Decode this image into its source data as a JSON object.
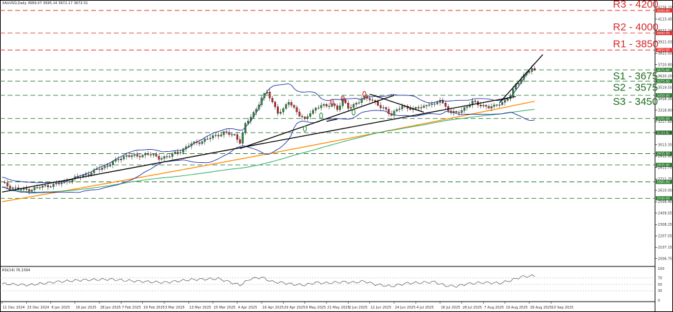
{
  "header": {
    "symbol_line": "XAUUSD,Daily  3689.07 3695.14 3672.17 3672.51",
    "rsi_line": "RSI(14) 76.1594"
  },
  "colors": {
    "resistance": "#e3342f",
    "support": "#2e7d32",
    "candle_up": "#2e8b3d",
    "candle_down": "#c62828",
    "bollinger": "#1f2fa8",
    "ma_mid": "#3cb371",
    "ma_long": "#ff8c00",
    "trendline": "#000000",
    "rsi": "#555555"
  },
  "chart_data": {
    "type": "candlestick",
    "ylim": [
      1950,
      4280
    ],
    "xlim": [
      0,
      197
    ],
    "y_ticks": [
      4226.1,
      4123.45,
      4022.24,
      3921.03,
      3821.0,
      3720.8,
      3620.2,
      3519.55,
      3418.35,
      3318.8,
      3217.6,
      3115.9,
      3013.35,
      2912.95,
      2811.7,
      2711.25,
      2610.0,
      2509.4,
      2409.05,
      2308.25,
      2207.05,
      2107.15,
      2006.75
    ],
    "x_labels": [
      {
        "i": 0,
        "label": "11 Dec 2024"
      },
      {
        "i": 9,
        "label": "23 Dec 2024"
      },
      {
        "i": 18,
        "label": "6 Jan 2025"
      },
      {
        "i": 27,
        "label": "16 Jan 2025"
      },
      {
        "i": 36,
        "label": "28 Jan 2025"
      },
      {
        "i": 44,
        "label": "7 Feb 2025"
      },
      {
        "i": 52,
        "label": "19 Feb 2025"
      },
      {
        "i": 60,
        "label": "3 Mar 2025"
      },
      {
        "i": 69,
        "label": "13 Mar 2025"
      },
      {
        "i": 78,
        "label": "25 Mar 2025"
      },
      {
        "i": 87,
        "label": "4 Apr 2025"
      },
      {
        "i": 96,
        "label": "16 Apr 2025"
      },
      {
        "i": 104,
        "label": "29 Apr 2025"
      },
      {
        "i": 112,
        "label": "9 May 2025"
      },
      {
        "i": 120,
        "label": "21 May 2025"
      },
      {
        "i": 128,
        "label": "2 Jun 2025"
      },
      {
        "i": 136,
        "label": "12 Jun 2025"
      },
      {
        "i": 145,
        "label": "24 Jun 2025"
      },
      {
        "i": 153,
        "label": "4 Jul 2025"
      },
      {
        "i": 162,
        "label": "16 Jul 2025"
      },
      {
        "i": 170,
        "label": "28 Jul 2025"
      },
      {
        "i": 178,
        "label": "7 Aug 2025"
      },
      {
        "i": 186,
        "label": "19 Aug 2025"
      },
      {
        "i": 195,
        "label": "29 Aug 2025"
      },
      {
        "i": 203,
        "label": "10 Sep 2025"
      }
    ],
    "price_anchors": [
      [
        0,
        2675
      ],
      [
        3,
        2640
      ],
      [
        6,
        2620
      ],
      [
        10,
        2615
      ],
      [
        14,
        2640
      ],
      [
        18,
        2655
      ],
      [
        22,
        2675
      ],
      [
        26,
        2710
      ],
      [
        30,
        2740
      ],
      [
        34,
        2780
      ],
      [
        38,
        2820
      ],
      [
        42,
        2870
      ],
      [
        46,
        2920
      ],
      [
        50,
        2910
      ],
      [
        54,
        2935
      ],
      [
        58,
        2895
      ],
      [
        62,
        2915
      ],
      [
        66,
        2960
      ],
      [
        70,
        3020
      ],
      [
        74,
        3045
      ],
      [
        78,
        3085
      ],
      [
        82,
        3120
      ],
      [
        86,
        3095
      ],
      [
        88,
        3040
      ],
      [
        90,
        3190
      ],
      [
        94,
        3330
      ],
      [
        96,
        3430
      ],
      [
        98,
        3475
      ],
      [
        100,
        3390
      ],
      [
        102,
        3300
      ],
      [
        104,
        3320
      ],
      [
        106,
        3395
      ],
      [
        108,
        3340
      ],
      [
        110,
        3275
      ],
      [
        112,
        3230
      ],
      [
        114,
        3300
      ],
      [
        116,
        3335
      ],
      [
        118,
        3360
      ],
      [
        120,
        3350
      ],
      [
        122,
        3380
      ],
      [
        124,
        3325
      ],
      [
        126,
        3400
      ],
      [
        128,
        3345
      ],
      [
        130,
        3365
      ],
      [
        132,
        3390
      ],
      [
        134,
        3430
      ],
      [
        136,
        3425
      ],
      [
        138,
        3385
      ],
      [
        140,
        3340
      ],
      [
        142,
        3325
      ],
      [
        144,
        3280
      ],
      [
        146,
        3320
      ],
      [
        148,
        3350
      ],
      [
        150,
        3345
      ],
      [
        152,
        3325
      ],
      [
        154,
        3340
      ],
      [
        156,
        3350
      ],
      [
        158,
        3380
      ],
      [
        160,
        3360
      ],
      [
        162,
        3410
      ],
      [
        164,
        3350
      ],
      [
        166,
        3300
      ],
      [
        168,
        3290
      ],
      [
        170,
        3320
      ],
      [
        172,
        3355
      ],
      [
        174,
        3390
      ],
      [
        176,
        3370
      ],
      [
        178,
        3360
      ],
      [
        180,
        3345
      ],
      [
        182,
        3350
      ],
      [
        184,
        3380
      ],
      [
        186,
        3400
      ],
      [
        188,
        3445
      ],
      [
        190,
        3540
      ],
      [
        192,
        3600
      ],
      [
        194,
        3650
      ],
      [
        196,
        3680
      ],
      [
        197,
        3672
      ]
    ],
    "resistances": [
      {
        "label": "R3 - 4200",
        "value": 4200,
        "tag": "4200.00"
      },
      {
        "label": "R2 - 4000",
        "value": 4000,
        "tag": "4000.00"
      },
      {
        "label": "R1 - 3850",
        "value": 3850,
        "tag": "3850.00"
      }
    ],
    "supports": [
      {
        "label": "S1 - 3675",
        "value": 3675,
        "tag": "3675.00"
      },
      {
        "label": "S2 - 3575",
        "value": 3575,
        "tag": "3575.00"
      },
      {
        "label": "S3 - 3450",
        "value": 3450,
        "tag": "3450.00"
      }
    ],
    "extra_levels": [
      {
        "value": 3245,
        "tag": "3245.00"
      },
      {
        "value": 3120,
        "tag": "3120.00"
      },
      {
        "value": 2935,
        "tag": "2935.00"
      },
      {
        "value": 2835,
        "tag": "2835.00"
      },
      {
        "value": 2685,
        "tag": "2685.00"
      },
      {
        "value": 2540,
        "tag": "2540.00"
      }
    ],
    "rsi": {
      "ylim": [
        0,
        100
      ],
      "ticks": [
        100,
        70,
        50,
        30,
        0
      ],
      "anchors": [
        [
          0,
          52
        ],
        [
          10,
          48
        ],
        [
          20,
          58
        ],
        [
          30,
          64
        ],
        [
          40,
          66
        ],
        [
          50,
          60
        ],
        [
          60,
          56
        ],
        [
          70,
          65
        ],
        [
          80,
          68
        ],
        [
          88,
          48
        ],
        [
          92,
          68
        ],
        [
          96,
          72
        ],
        [
          100,
          58
        ],
        [
          104,
          55
        ],
        [
          108,
          50
        ],
        [
          112,
          48
        ],
        [
          116,
          56
        ],
        [
          120,
          54
        ],
        [
          126,
          58
        ],
        [
          130,
          56
        ],
        [
          134,
          60
        ],
        [
          138,
          50
        ],
        [
          144,
          44
        ],
        [
          150,
          54
        ],
        [
          156,
          56
        ],
        [
          160,
          58
        ],
        [
          164,
          46
        ],
        [
          168,
          44
        ],
        [
          172,
          52
        ],
        [
          178,
          56
        ],
        [
          184,
          54
        ],
        [
          188,
          62
        ],
        [
          192,
          74
        ],
        [
          196,
          77
        ],
        [
          197,
          76
        ]
      ]
    }
  }
}
